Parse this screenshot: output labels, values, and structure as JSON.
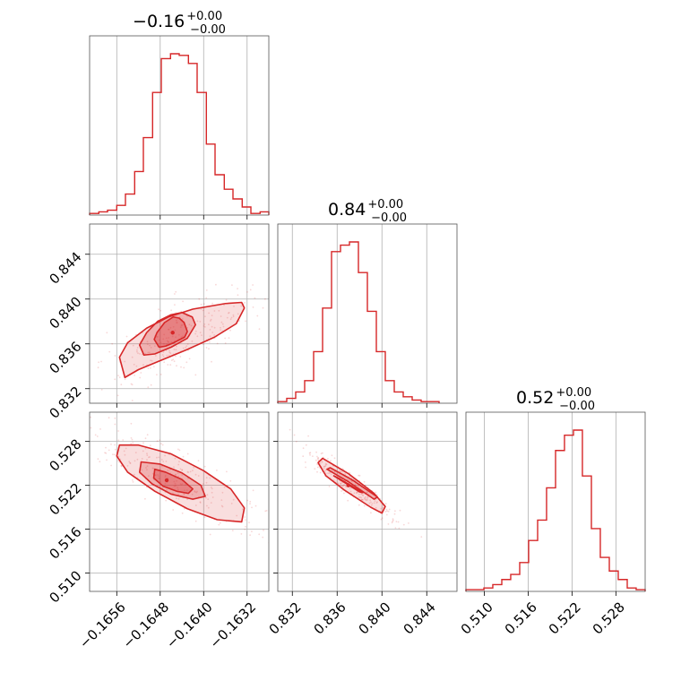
{
  "color": "#d62728",
  "chart_data": {
    "type": "corner",
    "parameters": [
      {
        "title": {
          "value": "−0.16",
          "plus": "+0.00",
          "minus": "−0.00"
        },
        "range": [
          -0.1661,
          -0.1628
        ],
        "ticks": [
          {
            "v": -0.1656,
            "label": "−0.1656"
          },
          {
            "v": -0.1648,
            "label": "−0.1648"
          },
          {
            "v": -0.164,
            "label": "−0.1640"
          },
          {
            "v": -0.1632,
            "label": "−0.1632"
          }
        ],
        "hist": {
          "edges": [
            -0.1661,
            -0.16593,
            -0.16577,
            -0.1656,
            -0.16544,
            -0.16527,
            -0.16511,
            -0.16494,
            -0.16478,
            -0.16461,
            -0.16445,
            -0.16428,
            -0.16412,
            -0.16395,
            -0.16379,
            -0.16362,
            -0.16346,
            -0.16329,
            -0.16313,
            -0.16296,
            -0.1628
          ],
          "counts": [
            1,
            2,
            3,
            6,
            13,
            27,
            48,
            76,
            97,
            100,
            99,
            94,
            76,
            44,
            25,
            16,
            10,
            5,
            1,
            2
          ]
        }
      },
      {
        "title": {
          "value": "0.84",
          "plus": "+0.00",
          "minus": "−0.00"
        },
        "range": [
          0.8307,
          0.8467
        ],
        "ticks": [
          {
            "v": 0.832,
            "label": "0.832"
          },
          {
            "v": 0.836,
            "label": "0.836"
          },
          {
            "v": 0.84,
            "label": "0.840"
          },
          {
            "v": 0.844,
            "label": "0.844"
          }
        ],
        "hist": {
          "edges": [
            0.8307,
            0.8315,
            0.8323,
            0.8331,
            0.8339,
            0.8347,
            0.8355,
            0.8363,
            0.8371,
            0.8379,
            0.8387,
            0.8395,
            0.8403,
            0.8411,
            0.8419,
            0.8427,
            0.8435,
            0.8443,
            0.8451
          ],
          "counts": [
            1,
            3,
            7,
            14,
            32,
            59,
            94,
            98,
            100,
            81,
            57,
            32,
            14,
            7,
            4,
            2,
            1,
            1
          ]
        }
      },
      {
        "title": {
          "value": "0.52",
          "plus": "+0.00",
          "minus": "−0.00"
        },
        "range": [
          0.5075,
          0.532
        ],
        "ticks": [
          {
            "v": 0.51,
            "label": "0.510"
          },
          {
            "v": 0.516,
            "label": "0.516"
          },
          {
            "v": 0.522,
            "label": "0.522"
          },
          {
            "v": 0.528,
            "label": "0.528"
          }
        ],
        "hist": {
          "edges": [
            0.5075,
            0.50872,
            0.50995,
            0.51117,
            0.5124,
            0.51362,
            0.51485,
            0.51607,
            0.5173,
            0.51852,
            0.51975,
            0.52097,
            0.5222,
            0.52342,
            0.52465,
            0.52587,
            0.5271,
            0.52832,
            0.52955,
            0.53077,
            0.532
          ],
          "counts": [
            1,
            1,
            2,
            4,
            7,
            10,
            17,
            30,
            42,
            61,
            83,
            92,
            95,
            68,
            37,
            20,
            12,
            7,
            2,
            1
          ]
        }
      }
    ],
    "pairs": [
      {
        "row": 1,
        "col": 0,
        "center": [
          -0.16457,
          0.837
        ],
        "levels": [
          [
            [
              -0.16482,
              0.8357
            ],
            [
              -0.1647,
              0.8358
            ],
            [
              -0.16455,
              0.8361
            ],
            [
              -0.16435,
              0.8366
            ],
            [
              -0.1643,
              0.8371
            ],
            [
              -0.16436,
              0.8379
            ],
            [
              -0.16445,
              0.8383
            ],
            [
              -0.16456,
              0.8384
            ],
            [
              -0.16472,
              0.8379
            ],
            [
              -0.16486,
              0.837
            ],
            [
              -0.16491,
              0.8364
            ],
            [
              -0.16482,
              0.8357
            ]
          ],
          [
            [
              -0.1651,
              0.835
            ],
            [
              -0.1649,
              0.8351
            ],
            [
              -0.1646,
              0.8357
            ],
            [
              -0.1643,
              0.8365
            ],
            [
              -0.16415,
              0.8377
            ],
            [
              -0.16421,
              0.8384
            ],
            [
              -0.1644,
              0.8388
            ],
            [
              -0.1646,
              0.8386
            ],
            [
              -0.16485,
              0.838
            ],
            [
              -0.16505,
              0.837
            ],
            [
              -0.16518,
              0.8359
            ],
            [
              -0.1651,
              0.835
            ]
          ],
          [
            [
              -0.16545,
              0.833
            ],
            [
              -0.1652,
              0.8337
            ],
            [
              -0.1648,
              0.8345
            ],
            [
              -0.1643,
              0.8355
            ],
            [
              -0.1638,
              0.8366
            ],
            [
              -0.1634,
              0.8378
            ],
            [
              -0.16325,
              0.8392
            ],
            [
              -0.1633,
              0.8397
            ],
            [
              -0.1636,
              0.8396
            ],
            [
              -0.1642,
              0.8391
            ],
            [
              -0.16465,
              0.8384
            ],
            [
              -0.16505,
              0.8374
            ],
            [
              -0.1654,
              0.8361
            ],
            [
              -0.16555,
              0.8348
            ],
            [
              -0.16545,
              0.833
            ]
          ]
        ]
      },
      {
        "row": 2,
        "col": 0,
        "center": [
          -0.16468,
          0.5227
        ],
        "levels": [
          [
            [
              -0.1649,
              0.5242
            ],
            [
              -0.1647,
              0.5238
            ],
            [
              -0.1644,
              0.5228
            ],
            [
              -0.1642,
              0.5215
            ],
            [
              -0.16428,
              0.5209
            ],
            [
              -0.1645,
              0.5212
            ],
            [
              -0.16475,
              0.5219
            ],
            [
              -0.16492,
              0.523
            ],
            [
              -0.1649,
              0.5242
            ]
          ],
          [
            [
              -0.16515,
              0.5252
            ],
            [
              -0.1648,
              0.5249
            ],
            [
              -0.1644,
              0.5237
            ],
            [
              -0.16405,
              0.522
            ],
            [
              -0.16397,
              0.5205
            ],
            [
              -0.1642,
              0.5201
            ],
            [
              -0.1646,
              0.5208
            ],
            [
              -0.16495,
              0.5222
            ],
            [
              -0.16518,
              0.5238
            ],
            [
              -0.16515,
              0.5252
            ]
          ],
          [
            [
              -0.16555,
              0.5275
            ],
            [
              -0.1652,
              0.5275
            ],
            [
              -0.1646,
              0.5263
            ],
            [
              -0.164,
              0.524
            ],
            [
              -0.1635,
              0.5215
            ],
            [
              -0.16325,
              0.5189
            ],
            [
              -0.1633,
              0.517
            ],
            [
              -0.16375,
              0.5173
            ],
            [
              -0.1643,
              0.5188
            ],
            [
              -0.1649,
              0.5212
            ],
            [
              -0.1654,
              0.5238
            ],
            [
              -0.1656,
              0.526
            ],
            [
              -0.16555,
              0.5275
            ]
          ]
        ]
      },
      {
        "row": 2,
        "col": 1,
        "center": [
          0.837,
          0.522
        ],
        "levels": [
          [
            [
              0.8357,
              0.5233
            ],
            [
              0.838,
              0.5211
            ],
            [
              0.8383,
              0.521
            ],
            [
              0.8361,
              0.523
            ],
            [
              0.8357,
              0.5233
            ]
          ],
          [
            [
              0.8351,
              0.5242
            ],
            [
              0.8371,
              0.5224
            ],
            [
              0.8393,
              0.5201
            ],
            [
              0.8396,
              0.5204
            ],
            [
              0.8374,
              0.5227
            ],
            [
              0.8354,
              0.5244
            ],
            [
              0.8351,
              0.5242
            ]
          ],
          [
            [
              0.8347,
              0.5257
            ],
            [
              0.837,
              0.5236
            ],
            [
              0.8393,
              0.5209
            ],
            [
              0.8403,
              0.5191
            ],
            [
              0.84,
              0.5182
            ],
            [
              0.839,
              0.519
            ],
            [
              0.8366,
              0.5214
            ],
            [
              0.835,
              0.5233
            ],
            [
              0.8343,
              0.5251
            ],
            [
              0.8347,
              0.5257
            ]
          ]
        ]
      }
    ]
  }
}
